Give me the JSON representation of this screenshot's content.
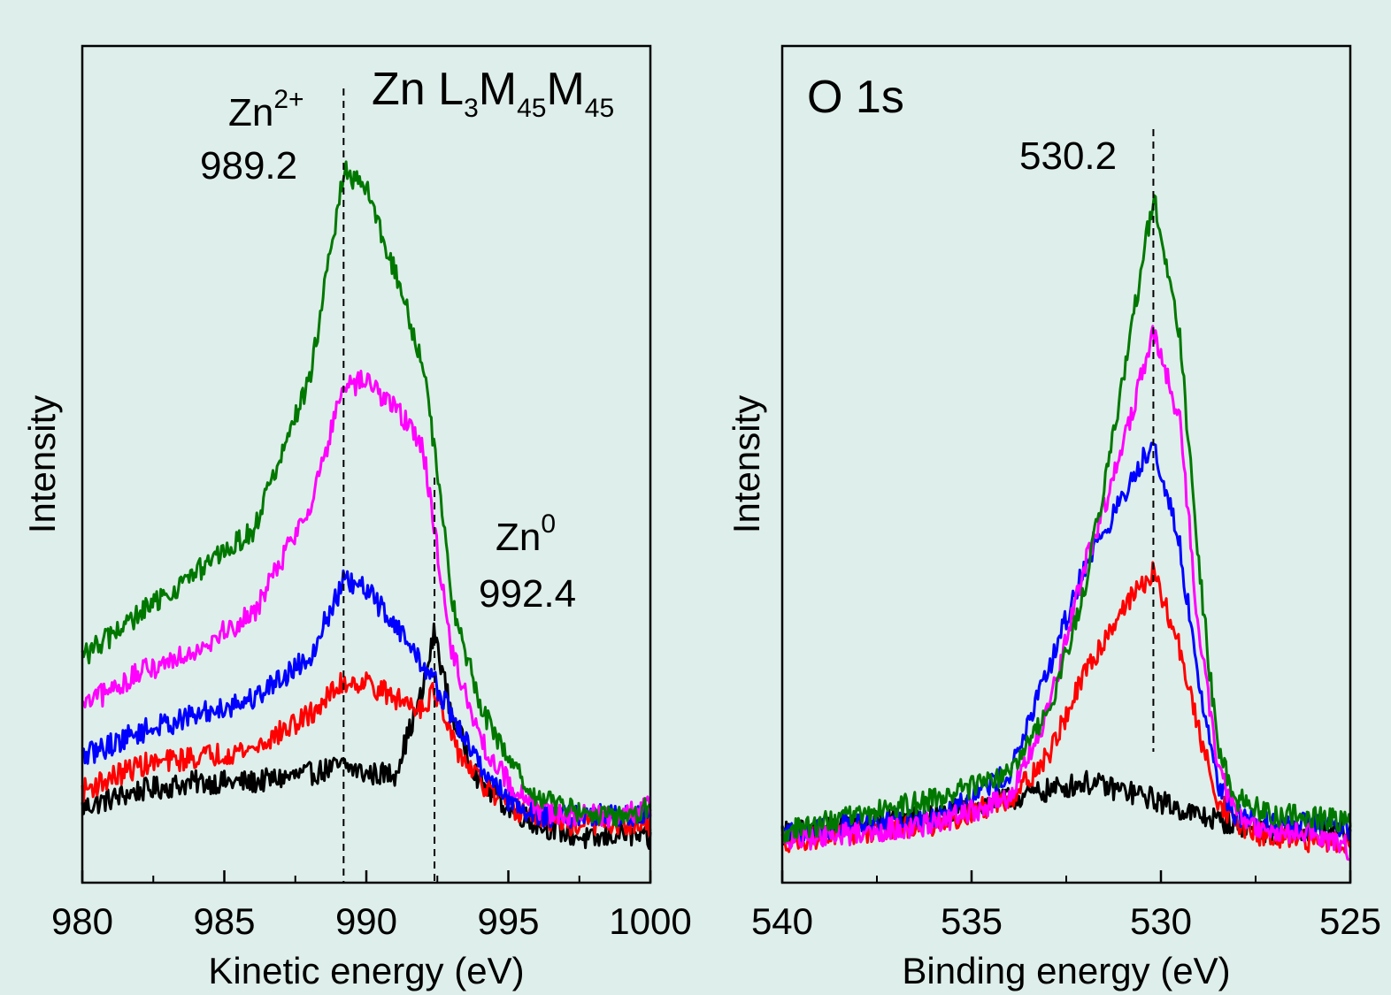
{
  "figure": {
    "background": "#deeeea"
  },
  "chart_data": [
    {
      "id": "zn",
      "type": "line",
      "title": "Zn L3M45M45",
      "title_parts": {
        "element": "Zn L",
        "s1": "3",
        "m1": "M",
        "s2": "45",
        "m2": "M",
        "s3": "45"
      },
      "xlabel": "Kinetic energy (eV)",
      "ylabel": "Intensity",
      "xlim": [
        980,
        1000
      ],
      "ylim": [
        0,
        1
      ],
      "x_reversed": false,
      "xticks": [
        980,
        985,
        990,
        995,
        1000
      ],
      "xticklabels": [
        "980",
        "985",
        "990",
        "995",
        "1000"
      ],
      "minor_xticks": [
        982.5,
        987.5,
        992.5,
        997.5
      ],
      "grid": false,
      "vlines": [
        989.2,
        992.4
      ],
      "annotations": {
        "zn2_species": "Zn",
        "zn2_charge": "2+",
        "zn2_value": "989.2",
        "zn0_species": "Zn",
        "zn0_charge": "0",
        "zn0_value": "992.4"
      },
      "series": [
        {
          "color": "#000000",
          "peaks": [
            {
              "x": 992.4,
              "h": 0.185,
              "w": 0.55
            }
          ],
          "values_x": [
            980,
            982,
            984,
            986,
            988,
            989.2,
            990,
            991,
            992,
            992.4,
            993,
            994,
            995,
            996,
            997,
            998,
            999,
            1000
          ],
          "values_y": [
            0.09,
            0.11,
            0.12,
            0.12,
            0.13,
            0.14,
            0.13,
            0.13,
            0.23,
            0.3,
            0.2,
            0.12,
            0.09,
            0.07,
            0.06,
            0.05,
            0.06,
            0.05
          ]
        },
        {
          "color": "#ff0000",
          "values_x": [
            980,
            982,
            984,
            986,
            988,
            989.2,
            990,
            991,
            992,
            992.4,
            993,
            994,
            995,
            996,
            997,
            998,
            999,
            1000
          ],
          "values_y": [
            0.11,
            0.14,
            0.15,
            0.16,
            0.2,
            0.24,
            0.24,
            0.22,
            0.21,
            0.23,
            0.17,
            0.12,
            0.09,
            0.08,
            0.07,
            0.07,
            0.07,
            0.07
          ]
        },
        {
          "color": "#0000ff",
          "values_x": [
            980,
            982,
            984,
            986,
            988,
            989.2,
            990,
            991,
            992,
            992.4,
            993,
            994,
            995,
            996,
            997,
            998,
            999,
            1000
          ],
          "values_y": [
            0.15,
            0.18,
            0.2,
            0.22,
            0.27,
            0.36,
            0.35,
            0.31,
            0.26,
            0.24,
            0.2,
            0.14,
            0.1,
            0.08,
            0.08,
            0.08,
            0.08,
            0.08
          ]
        },
        {
          "color": "#ff00ff",
          "values_x": [
            980,
            982,
            984,
            986,
            988,
            989.2,
            990,
            991,
            992,
            992.4,
            993,
            994,
            995,
            996,
            997,
            998,
            999,
            1000
          ],
          "values_y": [
            0.21,
            0.25,
            0.28,
            0.32,
            0.45,
            0.59,
            0.6,
            0.57,
            0.52,
            0.42,
            0.28,
            0.17,
            0.12,
            0.09,
            0.08,
            0.08,
            0.08,
            0.09
          ]
        },
        {
          "color": "#007800",
          "values_x": [
            980,
            982,
            984,
            986,
            988,
            989.2,
            990,
            991,
            992,
            992.4,
            993,
            994,
            995,
            996,
            997,
            998,
            999,
            1000
          ],
          "values_y": [
            0.27,
            0.32,
            0.37,
            0.42,
            0.6,
            0.85,
            0.83,
            0.73,
            0.62,
            0.52,
            0.34,
            0.21,
            0.15,
            0.1,
            0.09,
            0.08,
            0.08,
            0.09
          ]
        }
      ]
    },
    {
      "id": "o",
      "type": "line",
      "title": "O 1s",
      "xlabel": "Binding energy (eV)",
      "ylabel": "Intensity",
      "xlim": [
        540,
        525
      ],
      "ylim": [
        0,
        1
      ],
      "x_reversed": true,
      "xticks": [
        540,
        535,
        530,
        525
      ],
      "xticklabels": [
        "540",
        "535",
        "530",
        "525"
      ],
      "minor_xticks": [
        537.5,
        532.5,
        527.5
      ],
      "grid": false,
      "vlines": [
        530.2
      ],
      "annotations": {
        "o_value": "530.2"
      },
      "series": [
        {
          "color": "#000000",
          "values_x": [
            540,
            538,
            536,
            534,
            533,
            532,
            531,
            530.2,
            529,
            528,
            527,
            526,
            525
          ],
          "values_y": [
            0.06,
            0.07,
            0.08,
            0.1,
            0.11,
            0.12,
            0.11,
            0.1,
            0.08,
            0.07,
            0.06,
            0.06,
            0.06
          ]
        },
        {
          "color": "#ff0000",
          "values_x": [
            540,
            538,
            536,
            534,
            533,
            532,
            531,
            530.2,
            529.5,
            529,
            528.5,
            528,
            527,
            526,
            525
          ],
          "values_y": [
            0.05,
            0.06,
            0.07,
            0.1,
            0.15,
            0.25,
            0.33,
            0.37,
            0.28,
            0.18,
            0.1,
            0.07,
            0.05,
            0.05,
            0.05
          ]
        },
        {
          "color": "#0000ff",
          "values_x": [
            540,
            538,
            536,
            534,
            533,
            532,
            531,
            530.2,
            529.5,
            529,
            528.5,
            528,
            527,
            526,
            525
          ],
          "values_y": [
            0.06,
            0.07,
            0.08,
            0.13,
            0.25,
            0.38,
            0.46,
            0.53,
            0.4,
            0.24,
            0.12,
            0.08,
            0.07,
            0.07,
            0.06
          ]
        },
        {
          "color": "#ff00ff",
          "values_x": [
            540,
            538,
            536,
            534,
            533,
            532,
            531,
            530.2,
            529.5,
            529,
            528.5,
            528,
            527,
            526,
            525
          ],
          "values_y": [
            0.05,
            0.06,
            0.07,
            0.1,
            0.2,
            0.38,
            0.52,
            0.66,
            0.55,
            0.3,
            0.14,
            0.08,
            0.06,
            0.06,
            0.04
          ]
        },
        {
          "color": "#007800",
          "values_x": [
            540,
            538,
            536,
            534,
            533,
            532,
            531,
            530.2,
            529.5,
            529,
            528.5,
            528,
            527,
            526,
            525
          ],
          "values_y": [
            0.06,
            0.08,
            0.1,
            0.13,
            0.2,
            0.35,
            0.6,
            0.82,
            0.65,
            0.38,
            0.16,
            0.1,
            0.08,
            0.08,
            0.07
          ]
        }
      ]
    }
  ]
}
